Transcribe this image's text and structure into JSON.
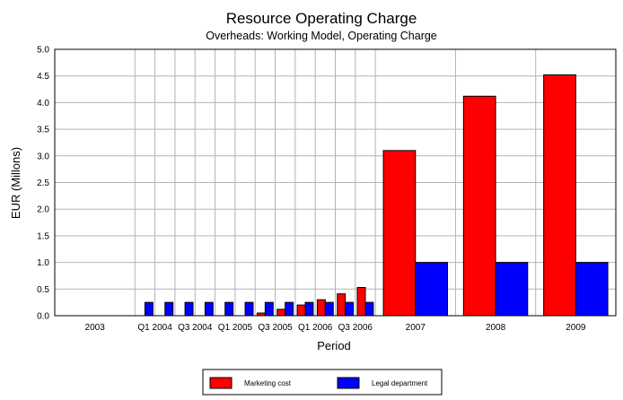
{
  "chart_data": {
    "type": "bar",
    "title": "Resource Operating Charge",
    "subtitle": "Overheads: Working Model, Operating Charge",
    "xlabel": "Period",
    "ylabel": "EUR  (Millons)",
    "ylim": [
      0,
      5.0
    ],
    "yticks": [
      "0.0",
      "0.5",
      "1.0",
      "1.5",
      "2.0",
      "2.5",
      "3.0",
      "3.5",
      "4.0",
      "4.5",
      "5.0"
    ],
    "grid": true,
    "legend_position": "bottom",
    "periods": [
      {
        "label": "2003",
        "slots": 4,
        "values": [
          null,
          null,
          null,
          null
        ]
      },
      {
        "label": "Q1 2004",
        "slots": 1,
        "values": [
          0,
          0.25
        ]
      },
      {
        "label": "",
        "slots": 1,
        "values": [
          0,
          0.25
        ]
      },
      {
        "label": "Q3 2004",
        "slots": 1,
        "values": [
          0,
          0.25
        ]
      },
      {
        "label": "",
        "slots": 1,
        "values": [
          0,
          0.25
        ]
      },
      {
        "label": "Q1 2005",
        "slots": 1,
        "values": [
          0,
          0.25
        ]
      },
      {
        "label": "",
        "slots": 1,
        "values": [
          0,
          0.25
        ]
      },
      {
        "label": "Q3 2005",
        "slots": 1,
        "values": [
          0.05,
          0.25
        ]
      },
      {
        "label": "",
        "slots": 1,
        "values": [
          0.12,
          0.25
        ]
      },
      {
        "label": "Q1 2006",
        "slots": 1,
        "values": [
          0.2,
          0.25
        ]
      },
      {
        "label": "",
        "slots": 1,
        "values": [
          0.3,
          0.25
        ]
      },
      {
        "label": "Q3 2006",
        "slots": 1,
        "values": [
          0.41,
          0.25
        ]
      },
      {
        "label": "",
        "slots": 1,
        "values": [
          0.53,
          0.25
        ]
      },
      {
        "label": "2007",
        "slots": 4,
        "values": [
          3.1,
          1.0
        ]
      },
      {
        "label": "2008",
        "slots": 4,
        "values": [
          4.12,
          1.0
        ]
      },
      {
        "label": "2009",
        "slots": 4,
        "values": [
          4.52,
          1.0
        ]
      }
    ],
    "series": [
      {
        "name": "Marketing cost",
        "color": "#ff0000"
      },
      {
        "name": "Legal department",
        "color": "#0000ff"
      }
    ]
  }
}
